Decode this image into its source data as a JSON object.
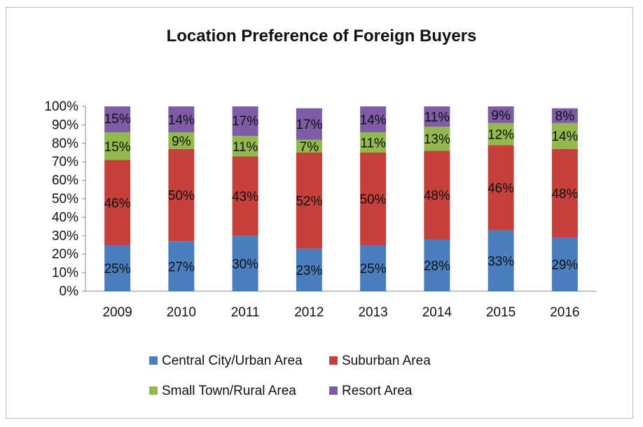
{
  "chart_data": {
    "type": "bar",
    "stacked": true,
    "title": "Location Preference of Foreign Buyers",
    "categories": [
      "2009",
      "2010",
      "2011",
      "2012",
      "2013",
      "2014",
      "2015",
      "2016"
    ],
    "series": [
      {
        "name": "Central City/Urban Area",
        "color": "#4a7ebf",
        "values": [
          25,
          27,
          30,
          23,
          25,
          28,
          33,
          29
        ]
      },
      {
        "name": "Suburban Area",
        "color": "#c5403b",
        "values": [
          46,
          50,
          43,
          52,
          50,
          48,
          46,
          48
        ]
      },
      {
        "name": "Small Town/Rural Area",
        "color": "#93b84e",
        "values": [
          15,
          9,
          11,
          7,
          11,
          13,
          12,
          14
        ]
      },
      {
        "name": "Resort Area",
        "color": "#7d5ba5",
        "values": [
          15,
          14,
          17,
          17,
          14,
          11,
          9,
          8
        ]
      }
    ],
    "ylim": [
      0,
      100
    ],
    "yticks": [
      "0%",
      "10%",
      "20%",
      "30%",
      "40%",
      "50%",
      "60%",
      "70%",
      "80%",
      "90%",
      "100%"
    ],
    "legend_position": "bottom",
    "grid": false
  }
}
